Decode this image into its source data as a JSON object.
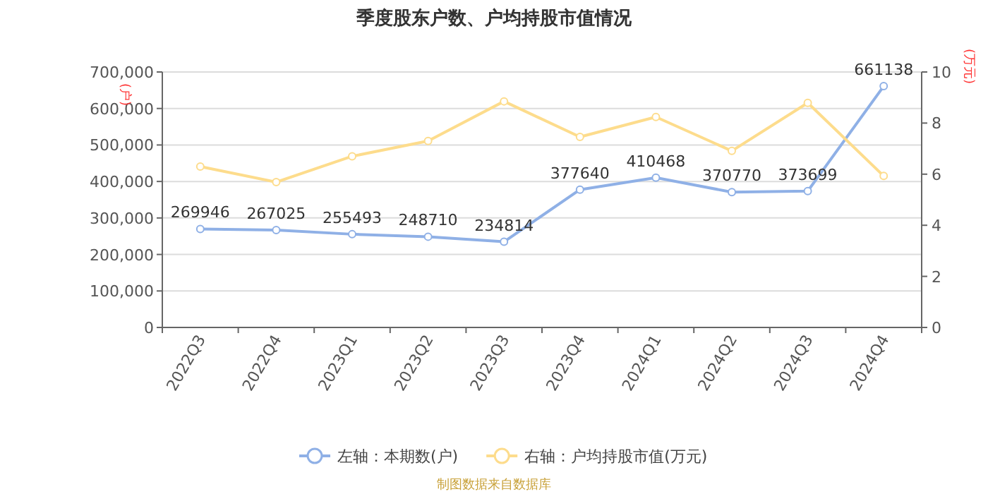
{
  "chart_data": {
    "type": "line",
    "title": "季度股东户数、户均持股市值情况",
    "ylabel": "(户)",
    "y2label": "(万元)",
    "categories": [
      "2022Q3",
      "2022Q4",
      "2023Q1",
      "2023Q2",
      "2023Q3",
      "2023Q4",
      "2024Q1",
      "2024Q2",
      "2024Q3",
      "2024Q4"
    ],
    "series": [
      {
        "name": "左轴：本期数(户)",
        "color": "#8fb0e6",
        "values": [
          269946,
          267025,
          255493,
          248710,
          234814,
          377640,
          410468,
          370770,
          373699,
          661138
        ],
        "value_labels": [
          "269946",
          "267025",
          "255493",
          "248710",
          "234814",
          "377640",
          "410468",
          "370770",
          "373699",
          "661138"
        ]
      },
      {
        "name": "右轴：户均持股市值(万元)",
        "color": "#fddc8c",
        "axis": "y2",
        "values": [
          6.3,
          5.69,
          6.7,
          7.3,
          8.85,
          7.46,
          8.24,
          6.91,
          8.79,
          5.93
        ]
      }
    ],
    "ylim": [
      0,
      700000
    ],
    "yticks": [
      {
        "value": 0,
        "label": "0"
      },
      {
        "value": 100000,
        "label": "100,000"
      },
      {
        "value": 200000,
        "label": "200,000"
      },
      {
        "value": 300000,
        "label": "300,000"
      },
      {
        "value": 400000,
        "label": "400,000"
      },
      {
        "value": 500000,
        "label": "500,000"
      },
      {
        "value": 600000,
        "label": "600,000"
      },
      {
        "value": 700000,
        "label": "700,000"
      }
    ],
    "y2lim": [
      0,
      10
    ],
    "y2ticks": [
      0,
      2,
      4,
      6,
      8,
      10
    ],
    "grid": "y",
    "legend": "bottom",
    "marker": "circle",
    "line_style": "solid",
    "annotations": [
      "制图数据来自数据库"
    ]
  }
}
